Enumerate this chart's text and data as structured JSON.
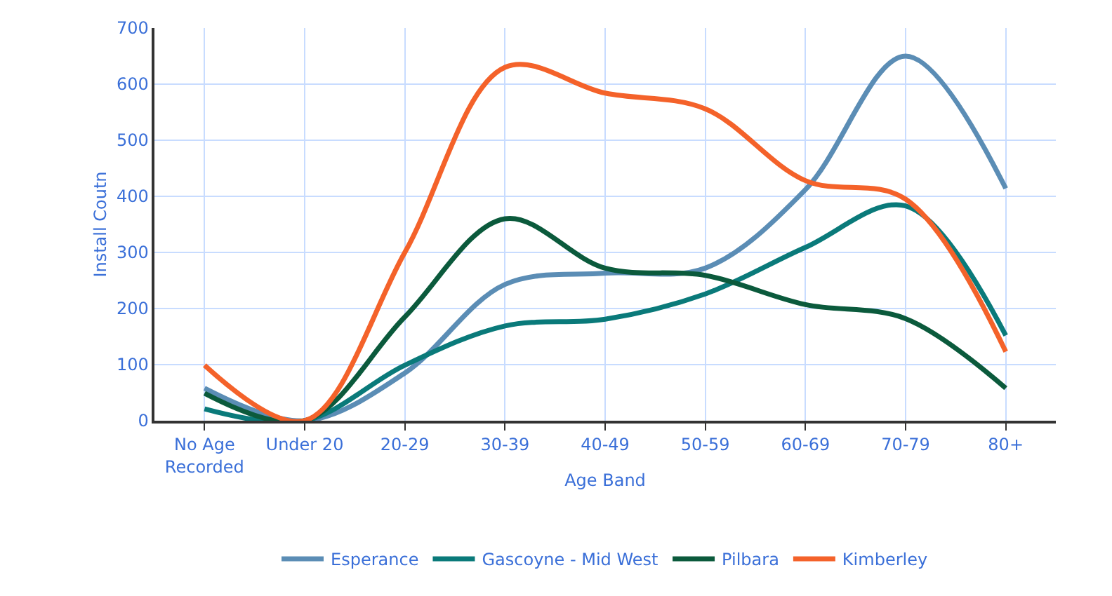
{
  "chart_data": {
    "type": "line",
    "xlabel": "Age Band",
    "ylabel": "Install Coutn",
    "categories": [
      "No Age Recorded",
      "Under 20",
      "20-29",
      "30-39",
      "40-49",
      "50-59",
      "60-69",
      "70-79",
      "80+"
    ],
    "series": [
      {
        "name": "Esperance",
        "color": "#5b8db5",
        "values": [
          58,
          0,
          85,
          243,
          263,
          272,
          412,
          650,
          414
        ]
      },
      {
        "name": "Gascoyne - Mid West",
        "color": "#0a7a7a",
        "values": [
          21,
          0,
          99,
          169,
          181,
          226,
          309,
          383,
          152
        ]
      },
      {
        "name": "Pilbara",
        "color": "#0b5a3c",
        "values": [
          49,
          0,
          185,
          360,
          272,
          259,
          207,
          182,
          58
        ]
      },
      {
        "name": "Kimberley",
        "color": "#f4622a",
        "values": [
          99,
          0,
          300,
          630,
          584,
          556,
          428,
          395,
          123
        ]
      }
    ],
    "ylim": [
      0,
      700
    ],
    "yticks": [
      0,
      100,
      200,
      300,
      400,
      500,
      600,
      700
    ],
    "grid": true,
    "legend": "bottom",
    "marker": "none",
    "line_style": "solid"
  }
}
